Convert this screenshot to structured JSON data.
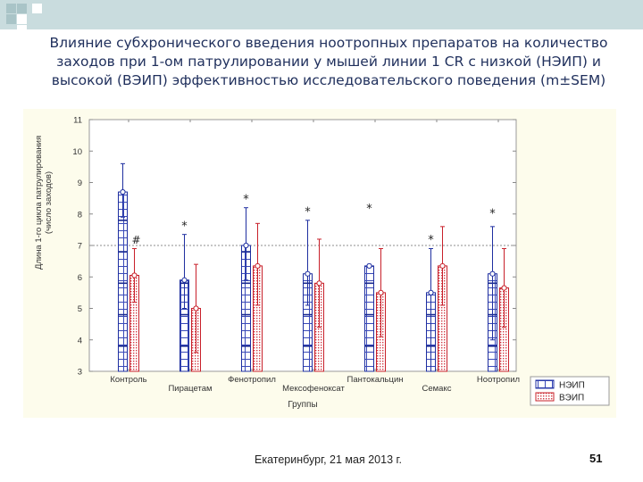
{
  "slide": {
    "title_lines": [
      "Влияние субхронического введения ноотропных препаратов на количество",
      "заходов при 1-ом патрулировании у мышей линии 1 CR с низкой (НЭИП) и",
      "высокой (ВЭИП) эффективностью исследовательского поведения (m±SEM)"
    ],
    "footer": "Екатеринбург, 21 мая 2013 г.",
    "page_number": "51",
    "colors": {
      "header_band": "#c9dcde",
      "title": "#1f2f5c",
      "chart_bg": "#fdfcec",
      "squares": [
        "#a9c4c7",
        "#ffffff"
      ]
    }
  },
  "chart_data": {
    "type": "bar",
    "title": "",
    "xlabel": "Группы",
    "ylabel_lines": [
      "Длина 1-го цикла патрулирования",
      "(число заходов)"
    ],
    "ylim": [
      3,
      11
    ],
    "yticks": [
      "3",
      "4",
      "5",
      "6",
      "7",
      "8",
      "9",
      "10",
      "11"
    ],
    "categories": [
      "Контроль",
      "Пирацетам",
      "Фенотропил",
      "Мексофенокcат",
      "Пантокальцин",
      "Семакс",
      "Ноотропил"
    ],
    "series": [
      {
        "name": "НЭИП",
        "color": "#1f2fa0",
        "pattern": "grid",
        "values": [
          8.7,
          5.9,
          7.0,
          6.1,
          6.35,
          5.5,
          6.1
        ],
        "err_upper": [
          9.6,
          7.35,
          8.2,
          7.8,
          6.4,
          6.9,
          7.6
        ],
        "err_lower": [
          7.9,
          5.0,
          5.9,
          5.1,
          6.3,
          3.0,
          4.0
        ]
      },
      {
        "name": "ВЭИП",
        "color": "#c8202a",
        "pattern": "dots",
        "values": [
          6.05,
          5.0,
          6.35,
          5.8,
          5.5,
          6.35,
          5.65
        ],
        "err_upper": [
          6.9,
          6.4,
          7.7,
          7.2,
          6.9,
          7.6,
          6.9
        ],
        "err_lower": [
          5.2,
          3.6,
          5.1,
          4.4,
          4.1,
          5.1,
          4.4
        ]
      }
    ],
    "reference_line": 7,
    "annotations": [
      {
        "text": "#",
        "category": 0,
        "series": 1,
        "y": 7.05
      },
      {
        "text": "*",
        "category": 1,
        "series": 0,
        "y": 7.5
      },
      {
        "text": "*",
        "category": 2,
        "series": 0,
        "y": 8.35
      },
      {
        "text": "*",
        "category": 3,
        "series": 0,
        "y": 7.95
      },
      {
        "text": "*",
        "category": 4,
        "series": 0,
        "y": 8.05
      },
      {
        "text": "*",
        "category": 5,
        "series": 0,
        "y": 7.05
      },
      {
        "text": "*",
        "category": 6,
        "series": 0,
        "y": 7.9
      }
    ],
    "legend": {
      "position": "bottom-right",
      "entries": [
        "НЭИП",
        "ВЭИП"
      ]
    }
  }
}
